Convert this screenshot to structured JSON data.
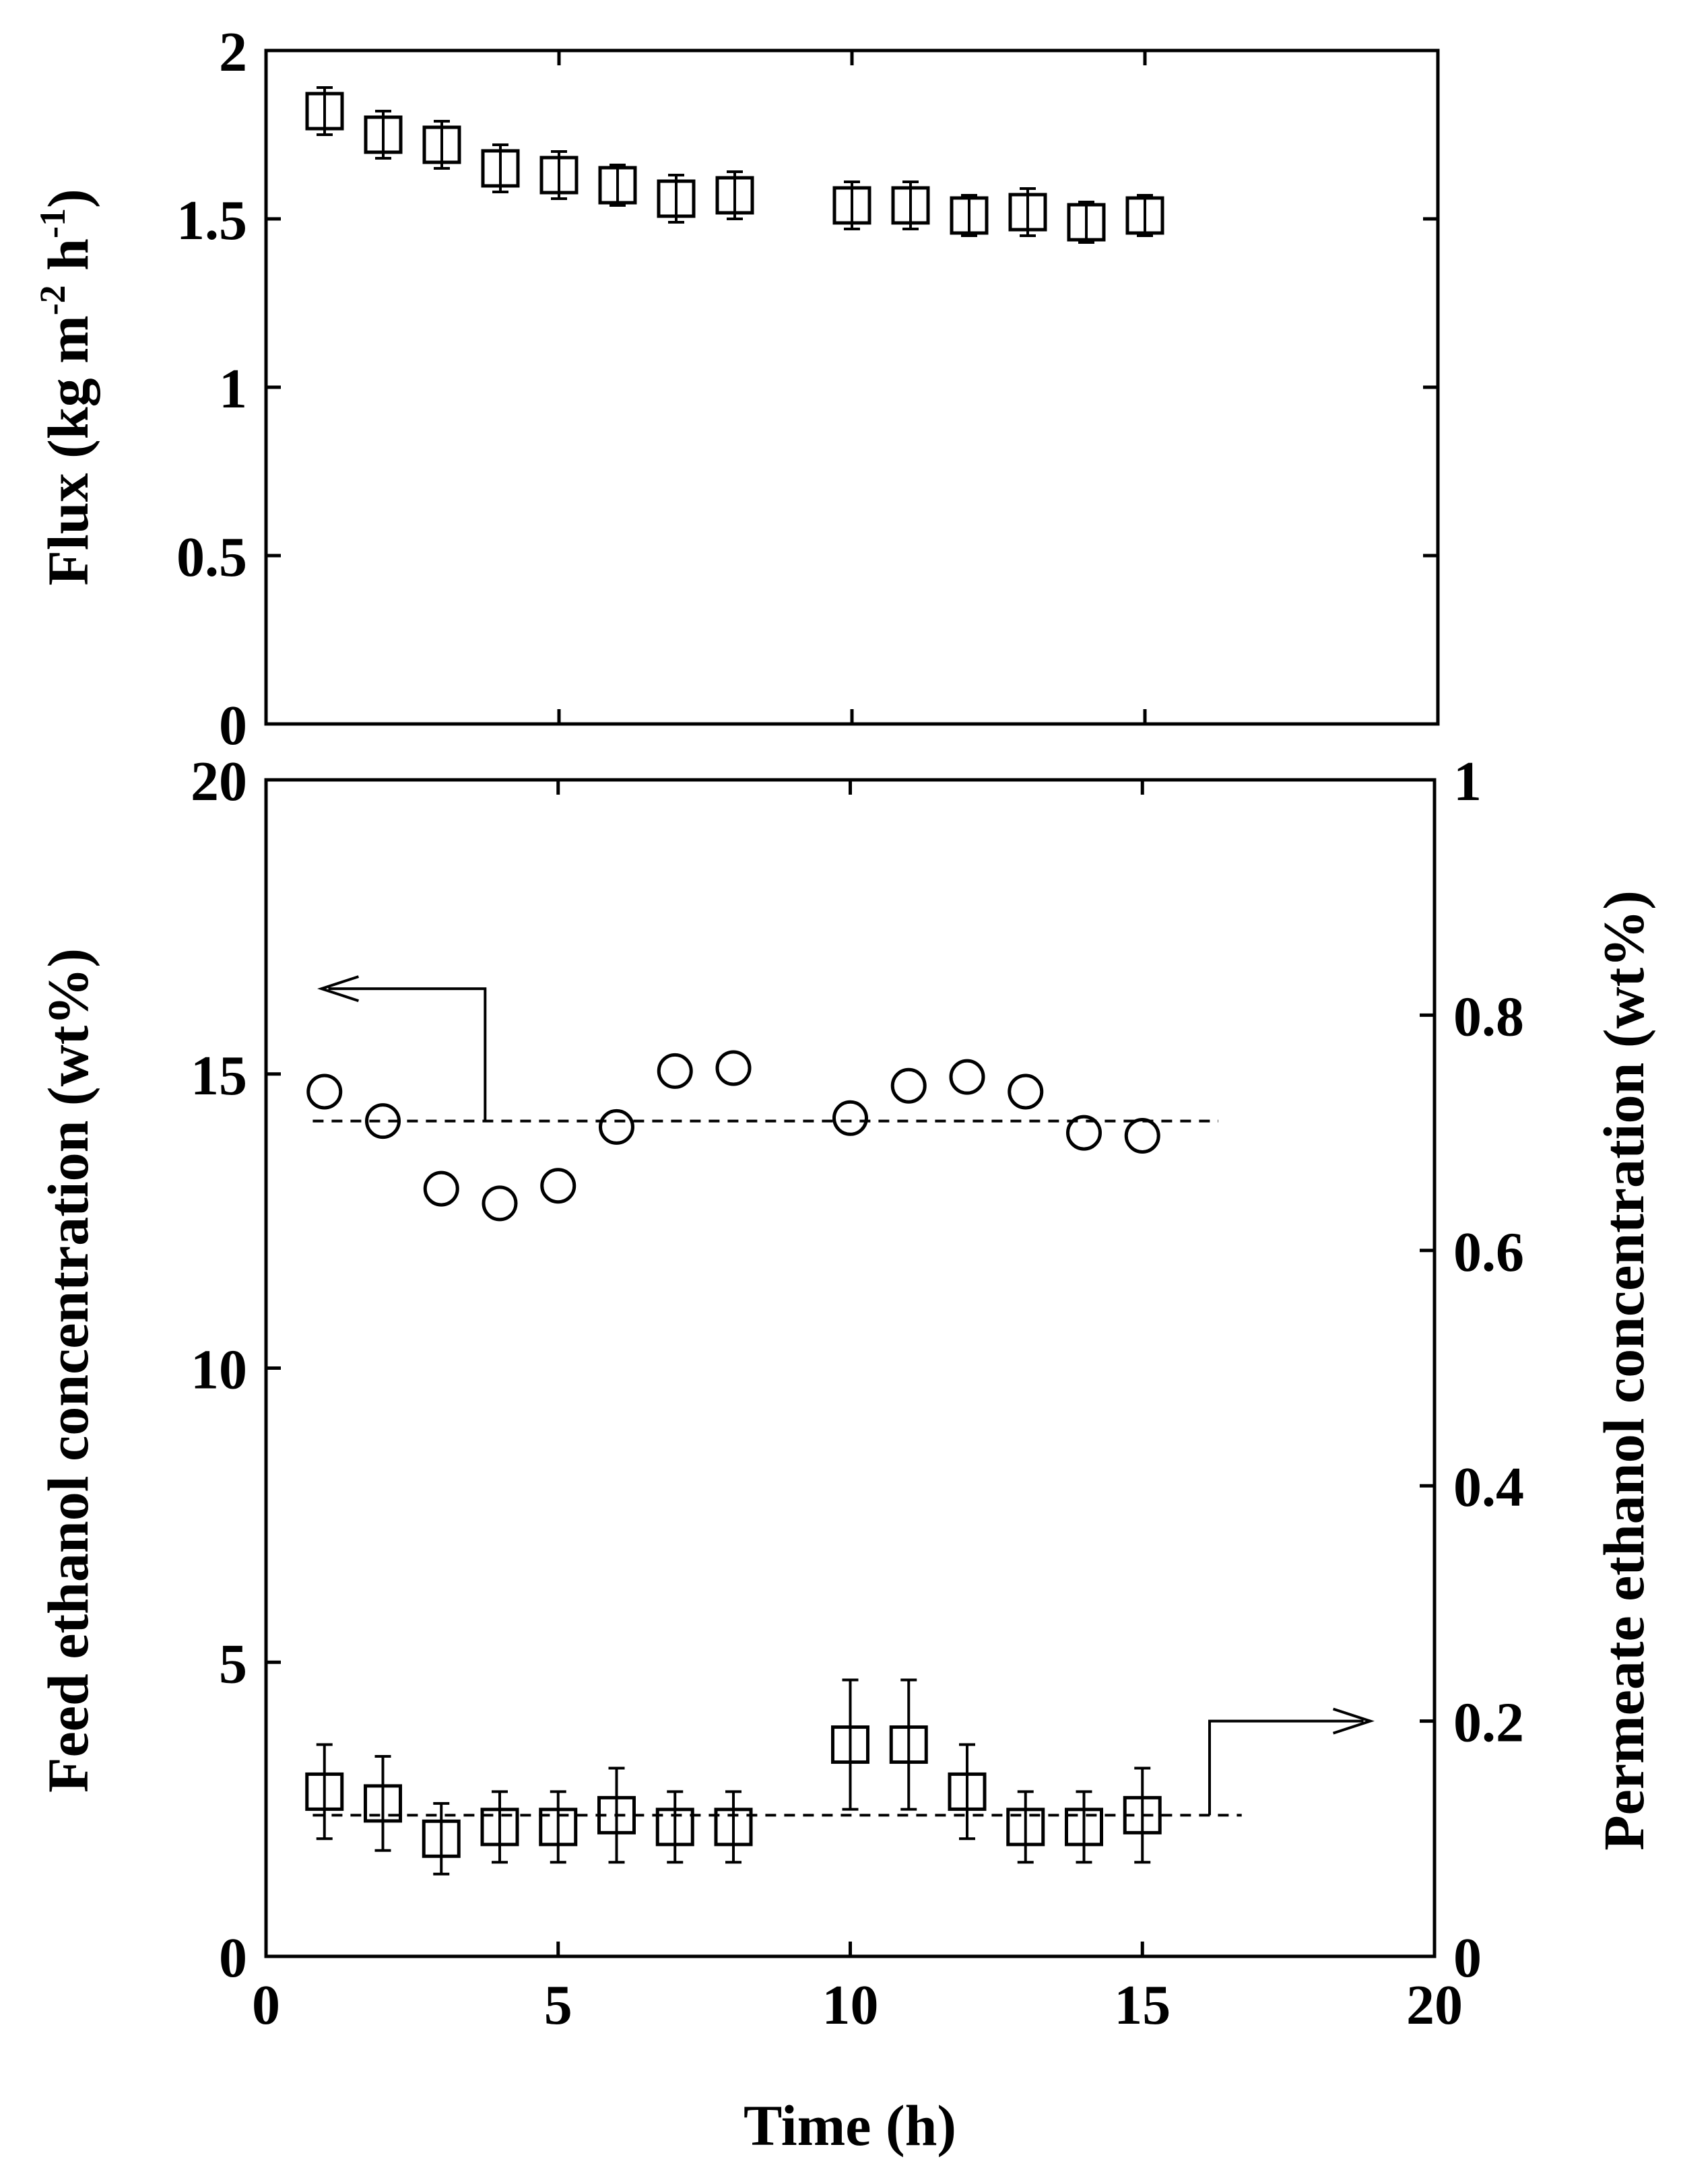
{
  "chart_data": [
    {
      "type": "scatter",
      "panel": "top",
      "ylabel": "Flux (kg m-2 h-1)",
      "ylabel_parts": {
        "base": "Flux (kg m",
        "exp1": "-2",
        "mid": " h",
        "exp2": "-1",
        "end": ")"
      },
      "xlim": [
        0,
        20
      ],
      "ylim": [
        0,
        2
      ],
      "x_ticks": [
        0,
        5,
        10,
        15,
        20
      ],
      "y_ticks": [
        0,
        0.5,
        1,
        1.5,
        2
      ],
      "y_tick_labels": [
        "0",
        "0.5",
        "1",
        "1.5",
        "2"
      ],
      "grid": false,
      "series": [
        {
          "marker": "square",
          "x": [
            1,
            2,
            3,
            4,
            5,
            6,
            7,
            8,
            10,
            11,
            12,
            13,
            14,
            15
          ],
          "y": [
            1.82,
            1.75,
            1.72,
            1.65,
            1.63,
            1.6,
            1.56,
            1.57,
            1.54,
            1.54,
            1.51,
            1.52,
            1.49,
            1.51
          ],
          "err": [
            0.07,
            0.07,
            0.07,
            0.07,
            0.07,
            0.06,
            0.07,
            0.07,
            0.07,
            0.07,
            0.06,
            0.07,
            0.06,
            0.06
          ]
        }
      ]
    },
    {
      "type": "scatter",
      "panel": "bottom",
      "xlabel": "Time (h)",
      "ylabel": "Feed ethanol concentration (wt%)",
      "y2label": "Permeate ethanol concentration (wt%)",
      "xlim": [
        0,
        20
      ],
      "ylim": [
        0,
        20
      ],
      "y2lim": [
        0,
        1
      ],
      "x_ticks": [
        0,
        5,
        10,
        15,
        20
      ],
      "y_ticks": [
        0,
        5,
        10,
        15,
        20
      ],
      "y2_ticks": [
        0,
        0.2,
        0.4,
        0.6,
        0.8,
        1
      ],
      "y2_tick_labels": [
        "0",
        "0.2",
        "0.4",
        "0.6",
        "0.8",
        "1"
      ],
      "grid": false,
      "series": [
        {
          "marker": "circle",
          "axis": "left",
          "x": [
            1,
            2,
            3,
            4,
            5,
            6,
            7,
            8,
            10,
            11,
            12,
            13,
            14,
            15
          ],
          "y": [
            14.7,
            14.2,
            13.05,
            12.8,
            13.1,
            14.1,
            15.05,
            15.1,
            14.25,
            14.8,
            14.95,
            14.7,
            14.0,
            13.95
          ]
        },
        {
          "marker": "square",
          "axis": "right",
          "x": [
            1,
            2,
            3,
            4,
            5,
            6,
            7,
            8,
            10,
            11,
            12,
            13,
            14,
            15
          ],
          "y": [
            0.14,
            0.13,
            0.1,
            0.11,
            0.11,
            0.12,
            0.11,
            0.11,
            0.18,
            0.18,
            0.14,
            0.11,
            0.11,
            0.12
          ],
          "err": [
            0.04,
            0.04,
            0.03,
            0.03,
            0.03,
            0.04,
            0.03,
            0.03,
            0.055,
            0.055,
            0.04,
            0.03,
            0.03,
            0.04
          ]
        }
      ],
      "reference_lines": [
        {
          "axis": "left",
          "y": 14.2,
          "x_range": [
            0.8,
            16.3
          ],
          "arrow": "left"
        },
        {
          "axis": "right",
          "y": 0.12,
          "x_range": [
            0.8,
            16.7
          ],
          "arrow": "right"
        }
      ]
    }
  ]
}
